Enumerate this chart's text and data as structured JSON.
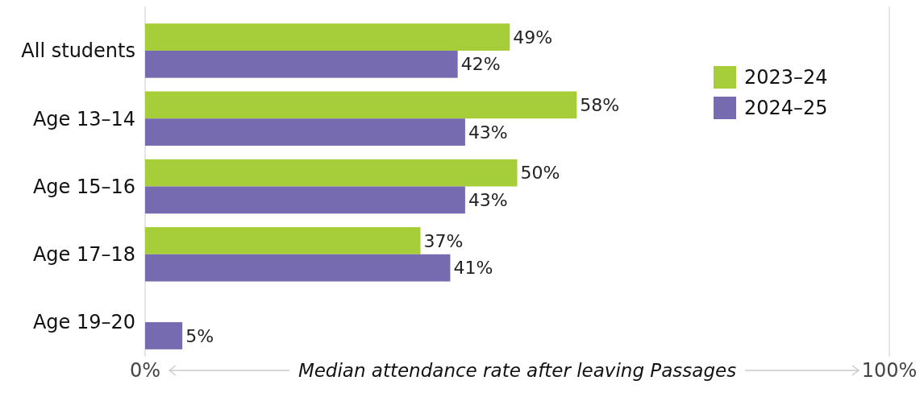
{
  "chart_data": {
    "type": "bar",
    "orientation": "horizontal",
    "xlabel": "Median attendance rate after leaving Passages",
    "categories": [
      "All students",
      "Age 13–14",
      "Age 15–16",
      "Age 17–18",
      "Age 19–20"
    ],
    "series": [
      {
        "name": "2023–24",
        "color": "#a6ce39",
        "values": [
          49,
          58,
          50,
          37,
          null
        ],
        "value_labels": [
          "49%",
          "58%",
          "50%",
          "37%",
          null
        ]
      },
      {
        "name": "2024–25",
        "color": "#766bb0",
        "values": [
          42,
          43,
          43,
          41,
          5
        ],
        "value_labels": [
          "42%",
          "43%",
          "43%",
          "41%",
          "5%"
        ]
      }
    ],
    "xlim": [
      0,
      100
    ],
    "xticks": [
      {
        "value": 0,
        "label": "0%"
      },
      {
        "value": 100,
        "label": "100%"
      }
    ],
    "legend": "top right"
  }
}
